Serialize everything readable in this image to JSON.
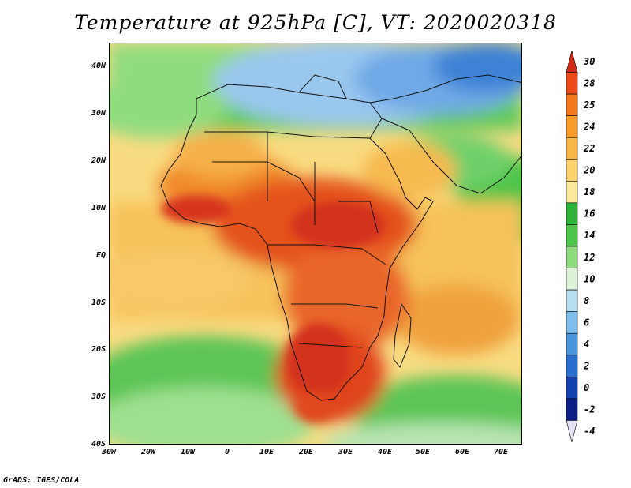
{
  "title": "Temperature at 925hPa [C], VT: 2020020318",
  "credit": "GrADS: IGES/COLA",
  "map": {
    "lat_labels": [
      "40N",
      "30N",
      "20N",
      "10N",
      "EQ",
      "10S",
      "20S",
      "30S",
      "40S"
    ],
    "lon_labels": [
      "30W",
      "20W",
      "10W",
      "0",
      "10E",
      "20E",
      "30E",
      "40E",
      "50E",
      "60E",
      "70E"
    ],
    "lat_range": [
      -40,
      45
    ],
    "lon_range": [
      -30,
      75
    ]
  },
  "colorbar": {
    "labels": [
      "30",
      "28",
      "25",
      "24",
      "22",
      "20",
      "18",
      "16",
      "14",
      "12",
      "10",
      "8",
      "6",
      "4",
      "2",
      "0",
      "-2",
      "-4"
    ],
    "colors": [
      "#d32a18",
      "#ee4a1c",
      "#f57a1e",
      "#f89c28",
      "#f7b847",
      "#fbd26e",
      "#fbe89a",
      "#2fb23a",
      "#4dc44a",
      "#8fdc7f",
      "#dcf3d8",
      "#b7dff2",
      "#7fbdea",
      "#4b95dc",
      "#2a6fcf",
      "#1443b0",
      "#0b1f86",
      "#e6e3f8"
    ]
  }
}
